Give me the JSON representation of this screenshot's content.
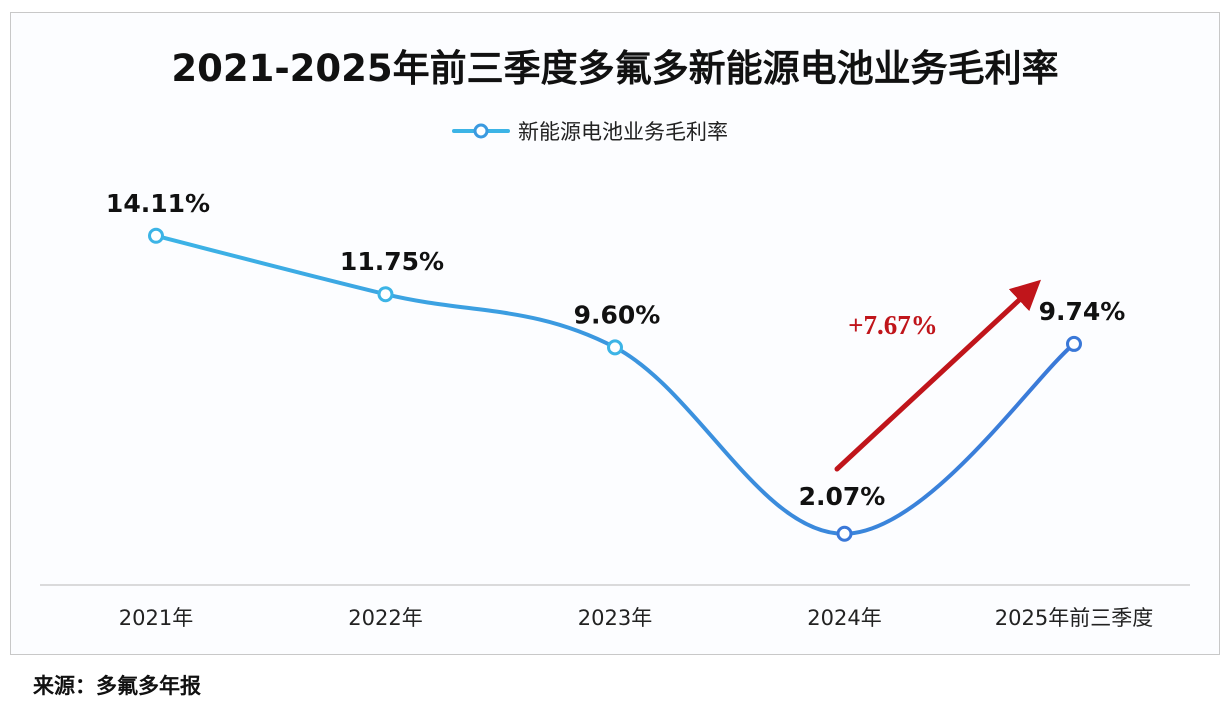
{
  "chart_data": {
    "type": "line",
    "title": "2021-2025年前三季度多氟多新能源电池业务毛利率",
    "categories": [
      "2021年",
      "2022年",
      "2023年",
      "2024年",
      "2025年前三季度"
    ],
    "series": [
      {
        "name": "新能源电池业务毛利率",
        "values": [
          14.11,
          11.75,
          9.6,
          2.07,
          9.74
        ],
        "labels": [
          "14.11%",
          "11.75%",
          "9.60%",
          "2.07%",
          "9.74%"
        ]
      }
    ],
    "ylim": [
      0,
      16
    ],
    "grid": false,
    "legend": "top-center",
    "annotation": {
      "text": "+7.67%",
      "color": "#c0151b"
    },
    "colors": {
      "line_start": "#3cb4e6",
      "line_end": "#3a78d8",
      "arrow": "#c0151b",
      "axis": "#cfcfcf"
    }
  },
  "source": "来源：多氟多年报"
}
